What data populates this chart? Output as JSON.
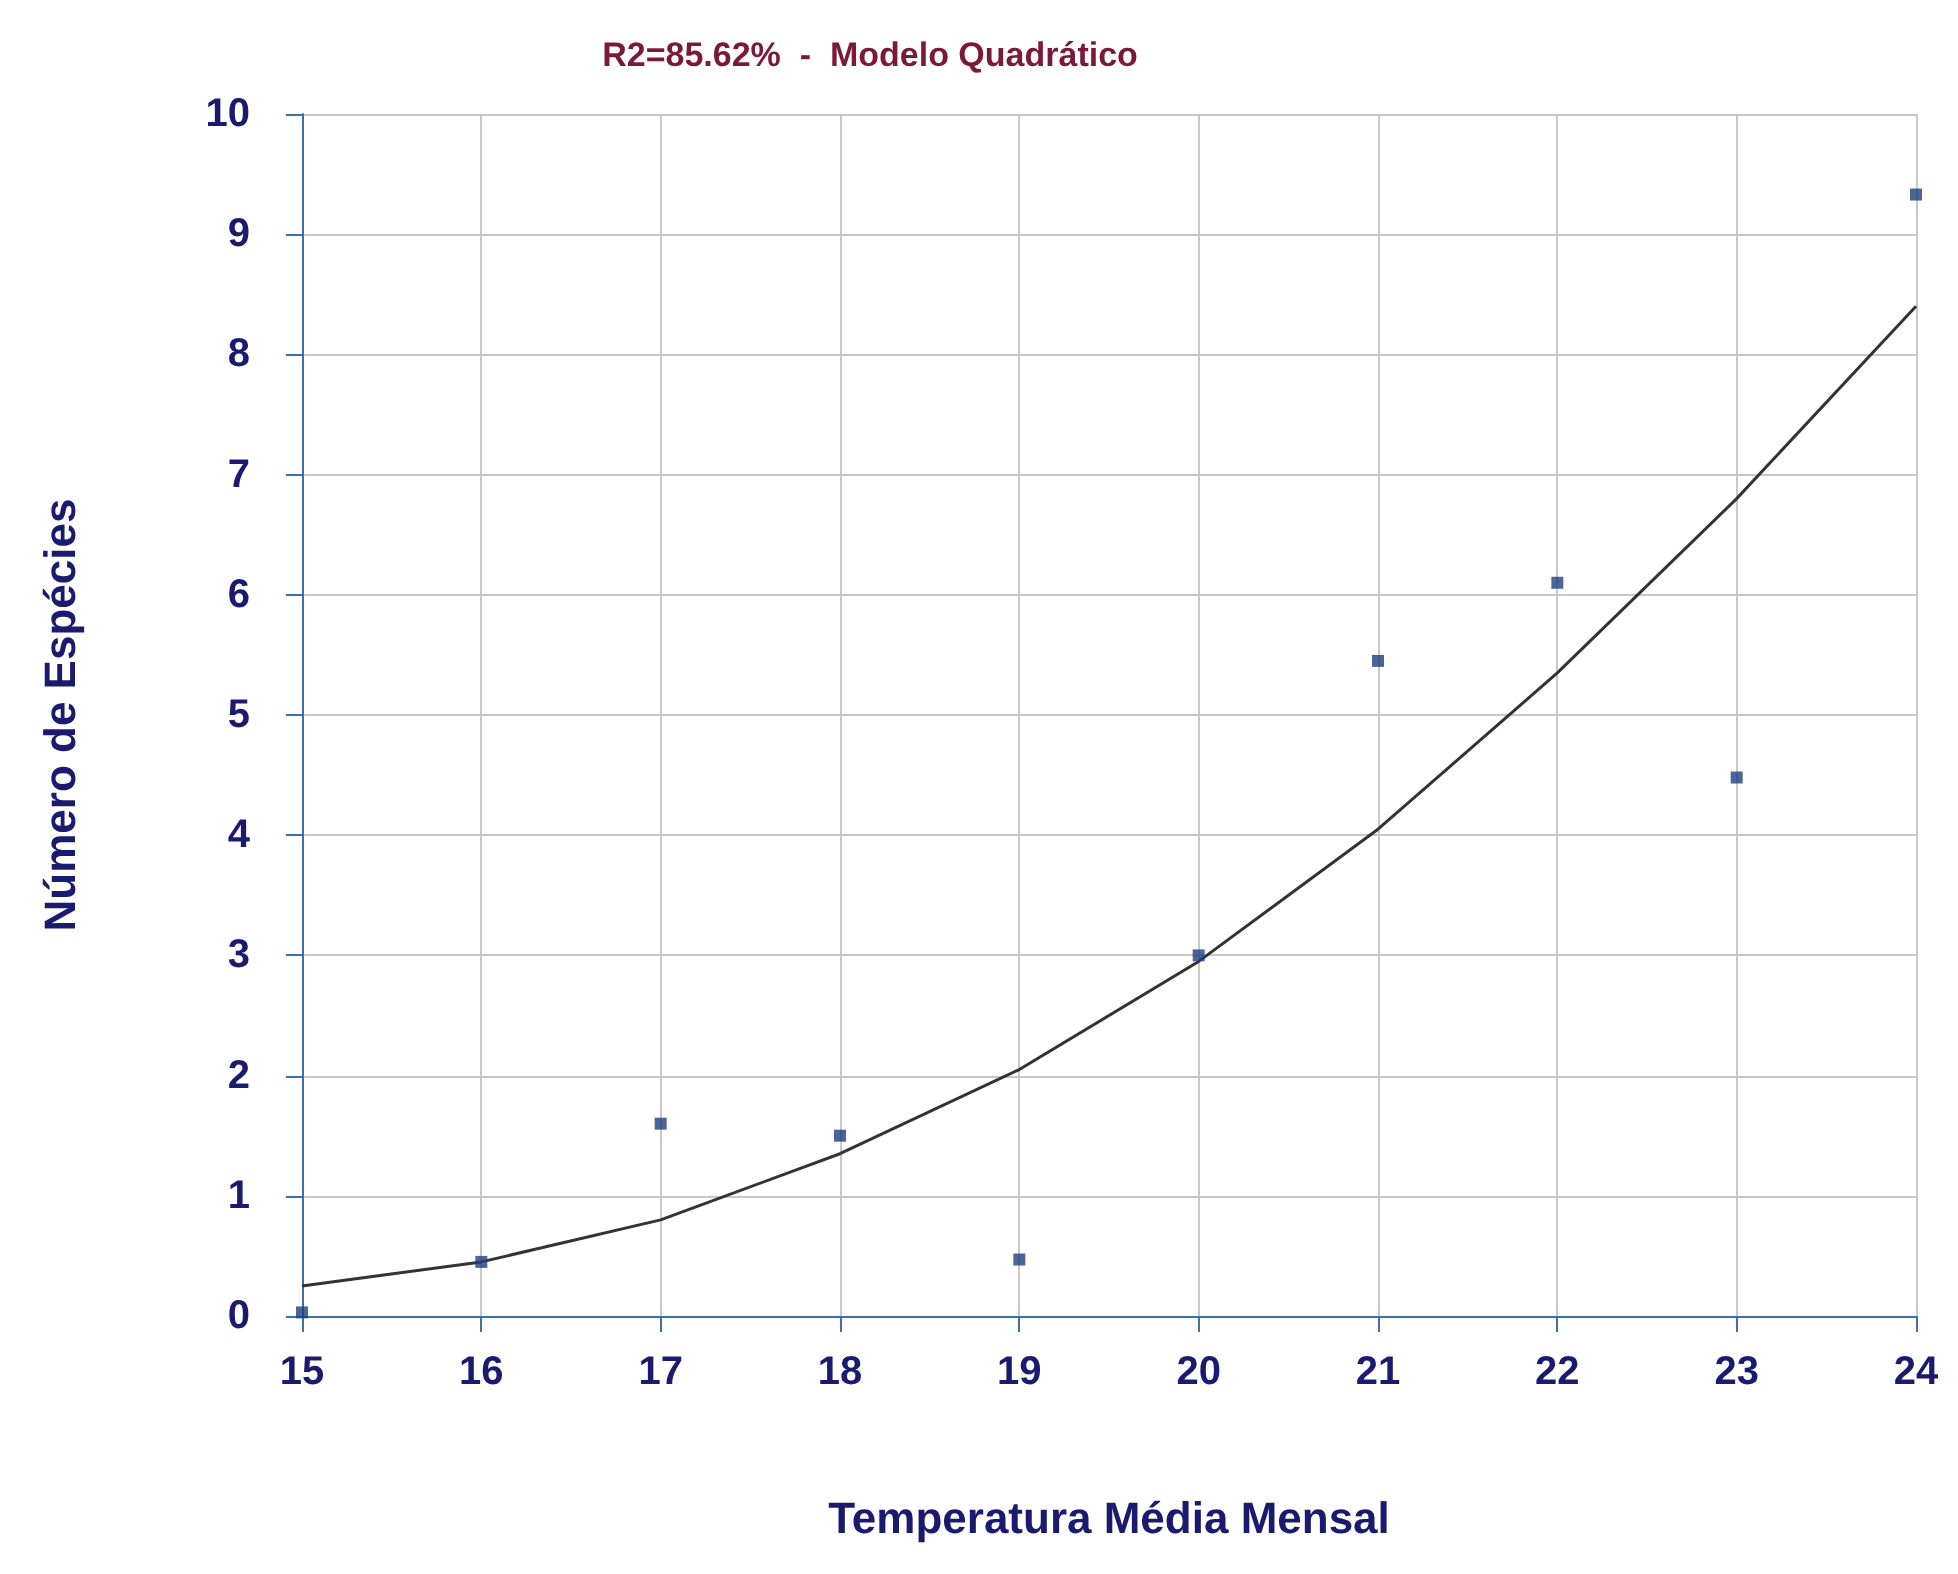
{
  "chart_data": {
    "type": "scatter",
    "title": "R2=85.62%  -  Modelo Quadrático",
    "xlabel": "Temperatura Média Mensal",
    "ylabel": "Número de Espécies",
    "series": [
      {
        "color": "#1f3f7f",
        "marker": "square",
        "x": [
          15,
          16,
          17,
          18,
          19,
          20,
          21,
          22,
          23,
          24
        ],
        "values": [
          0.03,
          0.45,
          1.6,
          1.5,
          0.47,
          3.0,
          5.45,
          6.1,
          4.48,
          9.33
        ]
      },
      {
        "type": "line",
        "color": "#333333",
        "marker": "none",
        "x": [
          15,
          16,
          17,
          18,
          19,
          20,
          21,
          22,
          23,
          24
        ],
        "values": [
          0.25,
          0.45,
          0.8,
          1.35,
          2.05,
          2.95,
          4.05,
          5.35,
          6.8,
          8.4
        ]
      }
    ],
    "xlim": [
      15,
      24
    ],
    "xticks": [
      15,
      16,
      17,
      18,
      19,
      20,
      21,
      22,
      23,
      24
    ],
    "ylim": [
      0,
      10
    ],
    "yticks": [
      0,
      1,
      2,
      3,
      4,
      5,
      6,
      7,
      8,
      9,
      10
    ],
    "grid": true
  }
}
